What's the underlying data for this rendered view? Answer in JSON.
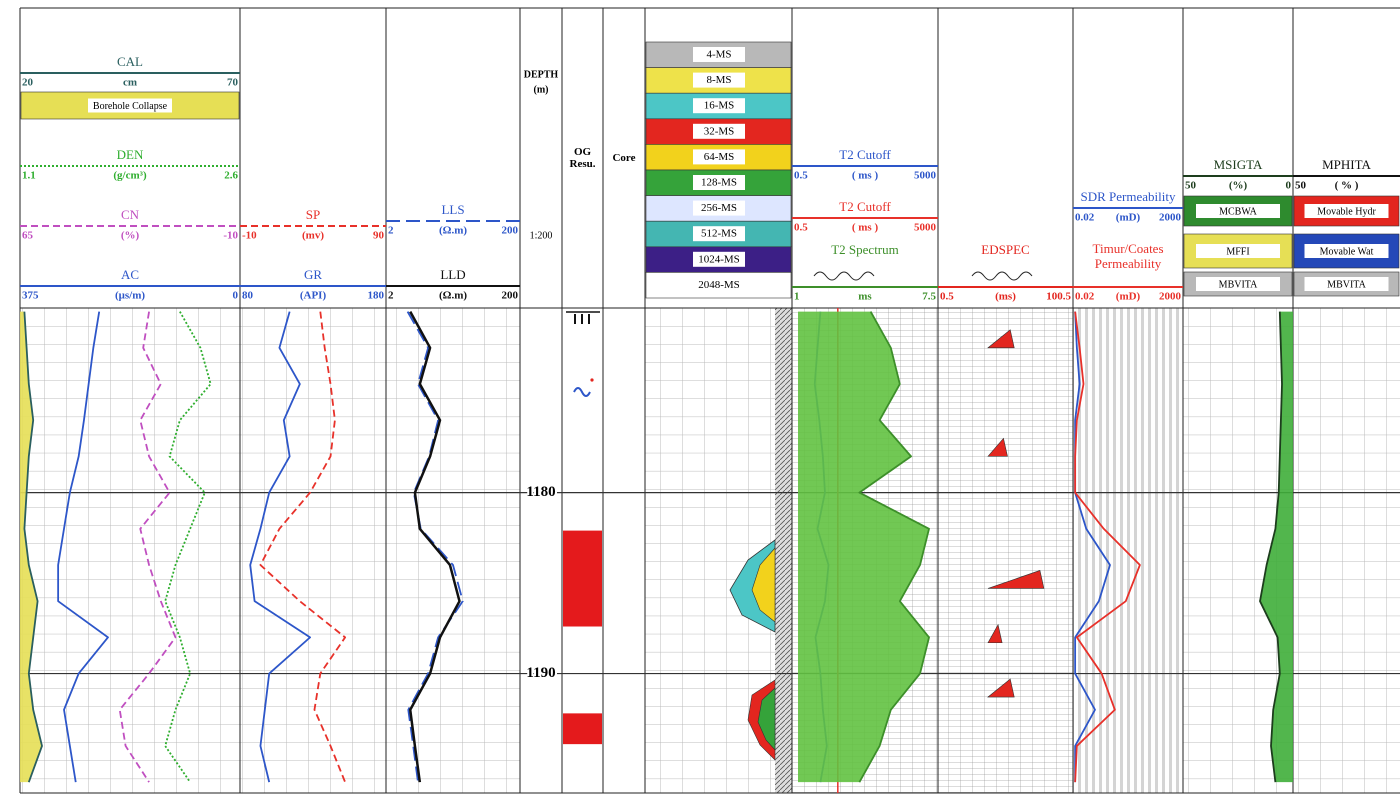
{
  "depth": {
    "title": "DEPTH",
    "unit": "(m)",
    "scale": "1:200",
    "ylim": [
      1169.8,
      1196.6
    ],
    "yticks": [
      1180,
      1190
    ],
    "samples": [
      1170,
      1172,
      1174,
      1176,
      1178,
      1180,
      1182,
      1184,
      1186,
      1188,
      1190,
      1192,
      1194,
      1196
    ]
  },
  "og_result": {
    "title": "OG Resu.",
    "color": "#e41a1c",
    "intervals": [
      [
        1182.1,
        1187.4
      ],
      [
        1192.2,
        1193.9
      ]
    ]
  },
  "core": {
    "title": "Core"
  },
  "lithology": {
    "items": [
      {
        "label": "4-MS",
        "color": "#b8b8b8"
      },
      {
        "label": "8-MS",
        "color": "#eee24a"
      },
      {
        "label": "16-MS",
        "color": "#4cc6c6"
      },
      {
        "label": "32-MS",
        "color": "#e3261f"
      },
      {
        "label": "64-MS",
        "color": "#f2d21c"
      },
      {
        "label": "128-MS",
        "color": "#35a33a"
      },
      {
        "label": "256-MS",
        "color": "#dde6ff"
      },
      {
        "label": "512-MS",
        "color": "#44b6b2"
      },
      {
        "label": "1024-MS",
        "color": "#3c1f86"
      },
      {
        "label": "2048-MS",
        "color": "#ffffff"
      }
    ]
  },
  "tracks": [
    {
      "curves": [
        {
          "name": "CAL",
          "unit": "cm",
          "left": 20,
          "right": 70,
          "color": "#2a5f5f",
          "dash": "solid",
          "fill": "#e6df55",
          "values": [
            21,
            21.5,
            22,
            23,
            22,
            21.5,
            21,
            22,
            24,
            23,
            22,
            23,
            25,
            22
          ]
        },
        {
          "name": "DEN",
          "unit": "(g/cm³)",
          "left": 1.1,
          "right": 2.6,
          "color": "#2fae2f",
          "dash": "dotted",
          "values": [
            2.19,
            2.33,
            2.4,
            2.19,
            2.12,
            2.36,
            2.26,
            2.16,
            2.09,
            2.19,
            2.26,
            2.16,
            2.09,
            2.26
          ]
        },
        {
          "name": "CN",
          "unit": "(%)",
          "left": 65,
          "right": -10,
          "color": "#c04fc0",
          "dash": "dashed",
          "values": [
            21,
            23,
            17,
            24,
            21,
            14,
            24,
            21,
            17,
            12,
            21,
            31,
            29,
            21
          ]
        },
        {
          "name": "AC",
          "unit": "(μs/m)",
          "left": 375,
          "right": 0,
          "color": "#2d56c9",
          "dash": "solid",
          "values": [
            240,
            250,
            258,
            266,
            275,
            290,
            300,
            310,
            310,
            225,
            275,
            300,
            290,
            280
          ]
        }
      ],
      "legend": [
        {
          "label": "Borehole Collapse",
          "color": "#e6df55"
        }
      ]
    },
    {
      "curves": [
        {
          "name": "SP",
          "unit": "(mv)",
          "left": -10,
          "right": 90,
          "color": "#e8312a",
          "dash": "dashed",
          "values": [
            45,
            48,
            52,
            55,
            52,
            38,
            17,
            4,
            31,
            62,
            45,
            41,
            52,
            62
          ]
        },
        {
          "name": "GR",
          "unit": "(API)",
          "left": 80,
          "right": 180,
          "color": "#2d56c9",
          "dash": "solid",
          "values": [
            114,
            107,
            121,
            110,
            114,
            100,
            94,
            87,
            90,
            128,
            100,
            97,
            94,
            100
          ]
        }
      ]
    },
    {
      "curves": [
        {
          "name": "LLS",
          "unit": "(Ω.m)",
          "left": 2,
          "right": 200,
          "log": true,
          "color": "#2d56c9",
          "dash": "longdash",
          "values": [
            4.2,
            8.5,
            6,
            12,
            8.8,
            5.2,
            6.6,
            20,
            28,
            12,
            8.5,
            4.3,
            5.1,
            6
          ]
        },
        {
          "name": "LLD",
          "unit": "(Ω.m)",
          "left": 2,
          "right": 200,
          "log": true,
          "color": "#111111",
          "dash": "solid",
          "values": [
            4.6,
            9.1,
            6.4,
            12.8,
            9.1,
            5.4,
            6.4,
            18,
            25,
            12.8,
            9.1,
            4.6,
            5.4,
            6.4
          ]
        }
      ]
    },
    {
      "curves": [
        {
          "name": "T2 Cutoff",
          "unit": "( ms )",
          "left": 0.5,
          "right": 5000,
          "log": true,
          "color": "#2d56c9",
          "dash": "solid",
          "values": [
            3,
            2.5,
            2.1,
            2.8,
            3.5,
            4,
            2.5,
            5,
            4,
            2.2,
            3,
            3.5,
            4.5,
            3
          ]
        },
        {
          "name": "T2 Cutoff",
          "unit": "( ms )",
          "left": 0.5,
          "right": 5000,
          "log": true,
          "color": "#e8312a",
          "dash": "solid",
          "value": 9
        },
        {
          "name": "T2 Spectrum",
          "unit": "ms",
          "left": 1,
          "right": 7.5,
          "color": "#3d8f2a",
          "dash": "solid",
          "fill": "#62c241",
          "values": [
            4.5,
            5.4,
            5.8,
            4.9,
            6.3,
            4.0,
            7.1,
            6.7,
            5.8,
            7.1,
            6.7,
            5.4,
            4.9,
            4.0
          ]
        }
      ]
    },
    {
      "curves": [
        {
          "name": "EDSPEC",
          "unit": "(ms)",
          "left": 0.5,
          "right": 100.5,
          "color": "#e3261f",
          "dash": "solid",
          "depths": [
            1171.5,
            1177.5,
            1184.8,
            1187.8,
            1190.8
          ],
          "peaks": [
            54,
            49,
            76,
            45,
            54
          ]
        }
      ]
    },
    {
      "curves": [
        {
          "name": "SDR Permeability",
          "unit": "(mD)",
          "left": 0.02,
          "right": 2000,
          "log": true,
          "color": "#2d56c9",
          "dash": "solid",
          "values": [
            0.025,
            0.03,
            0.04,
            0.025,
            0.025,
            0.025,
            0.08,
            0.96,
            0.3,
            0.025,
            0.025,
            0.2,
            0.025,
            0.025
          ]
        },
        {
          "name": "Timur/Coates Permeability",
          "unit": "(mD)",
          "left": 0.02,
          "right": 2000,
          "log": true,
          "color": "#e8312a",
          "dash": "solid",
          "values": [
            0.025,
            0.04,
            0.06,
            0.03,
            0.025,
            0.025,
            0.5,
            22,
            5,
            0.03,
            0.4,
            1.6,
            0.03,
            0.025
          ]
        }
      ]
    },
    {
      "curves": [
        {
          "name": "MSIGTA",
          "unit": "(%)",
          "left": 50,
          "right": 0,
          "color": "#1d3d1d",
          "dash": "solid",
          "fill": "#3fae3a",
          "values": [
            6,
            5.5,
            5,
            5.5,
            6,
            6.5,
            8,
            12,
            15,
            7,
            6,
            9,
            10,
            8
          ]
        }
      ],
      "legend": [
        {
          "label": "MCBWA",
          "color": "#2e8b2e"
        },
        {
          "label": "MFFI",
          "color": "#e6df55"
        },
        {
          "label": "MBVITA",
          "color": "#b8b8b8"
        }
      ]
    },
    {
      "curves": [
        {
          "name": "MPHITA",
          "unit": "( % )",
          "left": 50,
          "color": "#111111",
          "dash": "solid"
        }
      ],
      "legend": [
        {
          "label": "Movable Hydr",
          "color": "#e3261f"
        },
        {
          "label": "Movable Wat",
          "color": "#2448b8"
        },
        {
          "label": "MBVITA",
          "color": "#b8b8b8"
        }
      ]
    }
  ]
}
